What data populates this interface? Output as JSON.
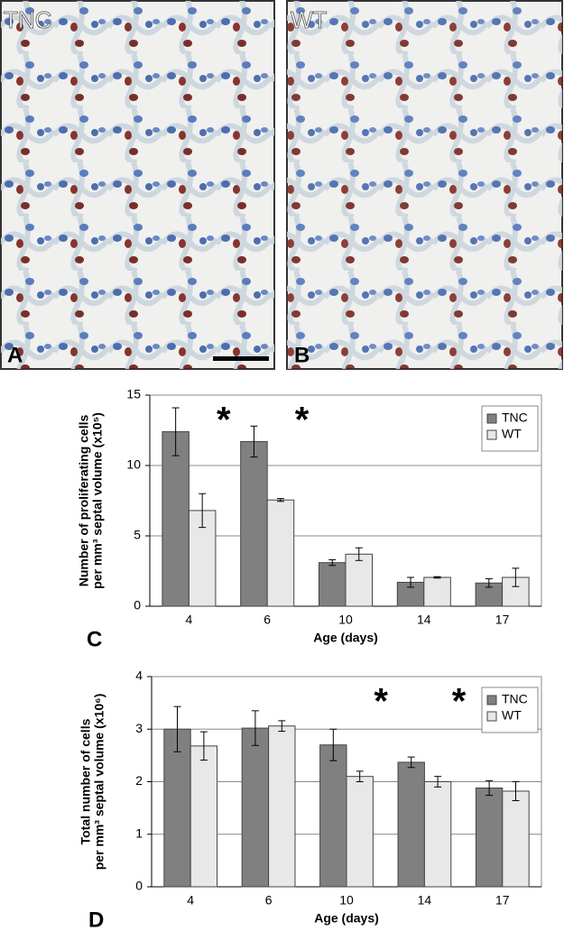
{
  "panels": [
    {
      "caption": "TNC",
      "label": "A"
    },
    {
      "caption": "WT",
      "label": "B"
    }
  ],
  "chart_data": [
    {
      "type": "bar",
      "panel_label": "C",
      "ylabel": [
        "Number of proliferating cells",
        "per mm³ septal volume (x10⁵)"
      ],
      "xlabel": "Age (days)",
      "categories": [
        "4",
        "6",
        "10",
        "14",
        "17"
      ],
      "series": [
        {
          "name": "TNC",
          "color": "#808080",
          "values": [
            12.4,
            11.7,
            3.1,
            1.7,
            1.65
          ],
          "errors": [
            1.7,
            1.1,
            0.2,
            0.35,
            0.3
          ]
        },
        {
          "name": "WT",
          "color": "#e8e8e8",
          "values": [
            6.8,
            7.55,
            3.7,
            2.05,
            2.05
          ],
          "errors": [
            1.2,
            0.1,
            0.45,
            0.05,
            0.65
          ]
        }
      ],
      "annotations": [
        {
          "text": "*",
          "x": "4"
        },
        {
          "text": "*",
          "x": "6"
        }
      ],
      "ylim": [
        0,
        15
      ],
      "yticks": [
        0,
        5,
        10,
        15
      ],
      "grid": true,
      "legend": "upper right"
    },
    {
      "type": "bar",
      "panel_label": "D",
      "ylabel": [
        "Total number of cells",
        "per mm³ septal volume (x10⁶)"
      ],
      "xlabel": "Age (days)",
      "categories": [
        "4",
        "6",
        "10",
        "14",
        "17"
      ],
      "series": [
        {
          "name": "TNC",
          "color": "#808080",
          "values": [
            3.0,
            3.02,
            2.7,
            2.37,
            1.88
          ],
          "errors": [
            0.43,
            0.33,
            0.3,
            0.1,
            0.14
          ]
        },
        {
          "name": "WT",
          "color": "#e8e8e8",
          "values": [
            2.68,
            3.06,
            2.1,
            2.0,
            1.82
          ],
          "errors": [
            0.27,
            0.1,
            0.1,
            0.1,
            0.18
          ]
        }
      ],
      "annotations": [
        {
          "text": "*",
          "x": "10"
        },
        {
          "text": "*",
          "x": "14"
        }
      ],
      "ylim": [
        0,
        4
      ],
      "yticks": [
        0,
        1,
        2,
        3,
        4
      ],
      "grid": true,
      "legend": "upper right"
    }
  ]
}
